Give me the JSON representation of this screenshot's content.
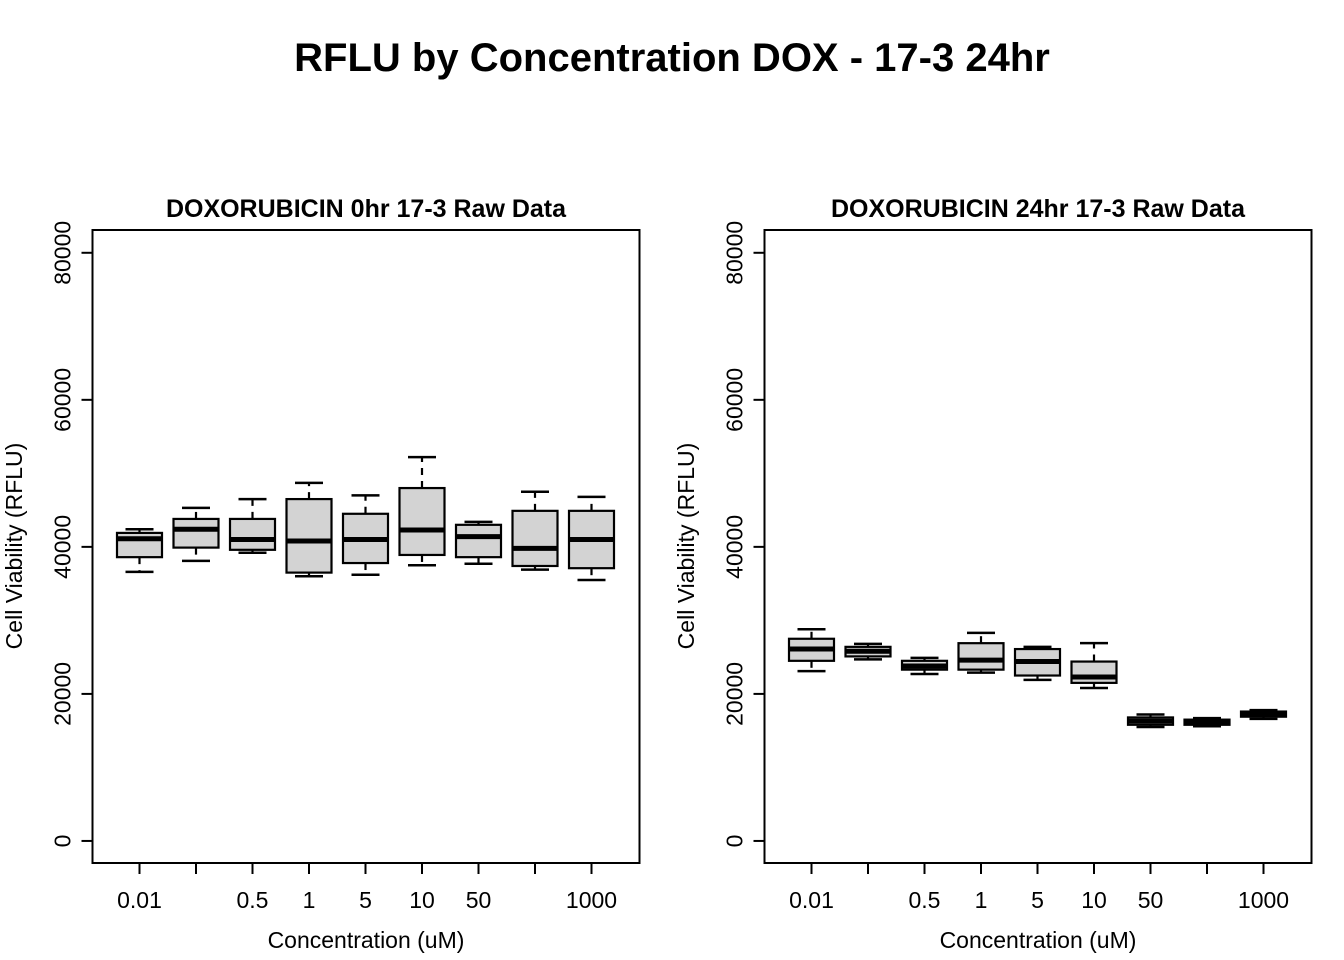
{
  "page": {
    "title": "RFLU by Concentration DOX - 17-3 24hr"
  },
  "chart_data": [
    {
      "type": "boxplot",
      "title": "DOXORUBICIN 0hr 17-3 Raw Data",
      "xlabel": "Concentration (uM)",
      "ylabel": "Cell Viability (RFLU)",
      "categories": [
        "0.01",
        "",
        "0.5",
        "1",
        "5",
        "10",
        "50",
        "",
        "1000"
      ],
      "ylim": [
        -3000,
        83100
      ],
      "yticks": [
        0,
        20000,
        40000,
        60000,
        80000
      ],
      "ytick_labels": [
        "0",
        "20000",
        "40000",
        "60000",
        "80000"
      ],
      "grid": false,
      "legend": false,
      "box_fill": "#d3d3d3",
      "stroke": "#000000",
      "boxes": [
        {
          "label": "0.01",
          "min": 36600,
          "q1": 38600,
          "median": 41100,
          "q3": 41900,
          "max": 42400
        },
        {
          "label": "",
          "min": 38100,
          "q1": 39900,
          "median": 42400,
          "q3": 43800,
          "max": 45300
        },
        {
          "label": "0.5",
          "min": 39200,
          "q1": 39600,
          "median": 41000,
          "q3": 43800,
          "max": 46500
        },
        {
          "label": "1",
          "min": 36000,
          "q1": 36500,
          "median": 40800,
          "q3": 46500,
          "max": 48700
        },
        {
          "label": "5",
          "min": 36200,
          "q1": 37800,
          "median": 41000,
          "q3": 44500,
          "max": 47000
        },
        {
          "label": "10",
          "min": 37500,
          "q1": 38900,
          "median": 42300,
          "q3": 48000,
          "max": 52200
        },
        {
          "label": "50",
          "min": 37700,
          "q1": 38600,
          "median": 41400,
          "q3": 43000,
          "max": 43400
        },
        {
          "label": "",
          "min": 36900,
          "q1": 37400,
          "median": 39800,
          "q3": 44900,
          "max": 47500
        },
        {
          "label": "1000",
          "min": 35500,
          "q1": 37100,
          "median": 41000,
          "q3": 44900,
          "max": 46800
        }
      ]
    },
    {
      "type": "boxplot",
      "title": "DOXORUBICIN 24hr 17-3 Raw Data",
      "xlabel": "Concentration (uM)",
      "ylabel": "Cell Viability (RFLU)",
      "categories": [
        "0.01",
        "",
        "0.5",
        "1",
        "5",
        "10",
        "50",
        "",
        "1000"
      ],
      "ylim": [
        -3000,
        83100
      ],
      "yticks": [
        0,
        20000,
        40000,
        60000,
        80000
      ],
      "ytick_labels": [
        "0",
        "20000",
        "40000",
        "60000",
        "80000"
      ],
      "grid": false,
      "legend": false,
      "box_fill": "#d3d3d3",
      "stroke": "#000000",
      "boxes": [
        {
          "label": "0.01",
          "min": 23100,
          "q1": 24500,
          "median": 26100,
          "q3": 27500,
          "max": 28800
        },
        {
          "label": "",
          "min": 24700,
          "q1": 25100,
          "median": 25800,
          "q3": 26400,
          "max": 26800
        },
        {
          "label": "0.5",
          "min": 22700,
          "q1": 23300,
          "median": 23800,
          "q3": 24500,
          "max": 24900
        },
        {
          "label": "1",
          "min": 22900,
          "q1": 23300,
          "median": 24600,
          "q3": 26900,
          "max": 28300
        },
        {
          "label": "5",
          "min": 21900,
          "q1": 22500,
          "median": 24400,
          "q3": 26100,
          "max": 26400
        },
        {
          "label": "10",
          "min": 20800,
          "q1": 21500,
          "median": 22300,
          "q3": 24400,
          "max": 26900
        },
        {
          "label": "50",
          "min": 15500,
          "q1": 15800,
          "median": 16300,
          "q3": 16800,
          "max": 17200
        },
        {
          "label": "",
          "min": 15600,
          "q1": 15800,
          "median": 16100,
          "q3": 16500,
          "max": 16700
        },
        {
          "label": "1000",
          "min": 16600,
          "q1": 16900,
          "median": 17200,
          "q3": 17600,
          "max": 17800
        }
      ]
    }
  ]
}
